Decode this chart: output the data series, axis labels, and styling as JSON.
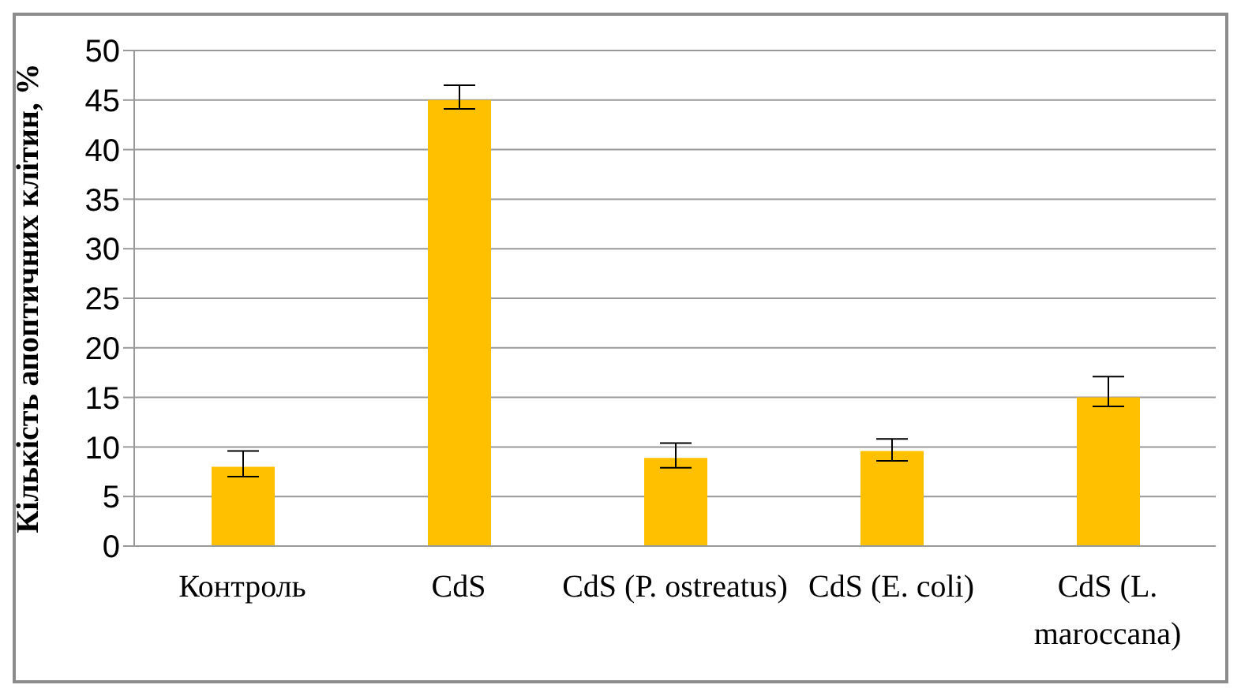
{
  "chart_data": {
    "type": "bar",
    "ylabel": "Кількість апоптичних клітин, %",
    "categories": [
      "Контроль",
      "CdS",
      "CdS (P. ostreatus)",
      "CdS (E. coli)",
      "CdS (L. maroccana)"
    ],
    "values": [
      8.0,
      45.0,
      8.9,
      9.6,
      15.0
    ],
    "errors": [
      [
        7.0,
        9.6
      ],
      [
        44.1,
        46.5
      ],
      [
        7.9,
        10.4
      ],
      [
        8.6,
        10.8
      ],
      [
        14.1,
        17.1
      ]
    ],
    "color": "#ffc000",
    "ylim": [
      0,
      50
    ],
    "yticks": [
      0,
      5,
      10,
      15,
      20,
      25,
      30,
      35,
      40,
      45,
      50
    ],
    "grid": "y",
    "legend": false
  }
}
